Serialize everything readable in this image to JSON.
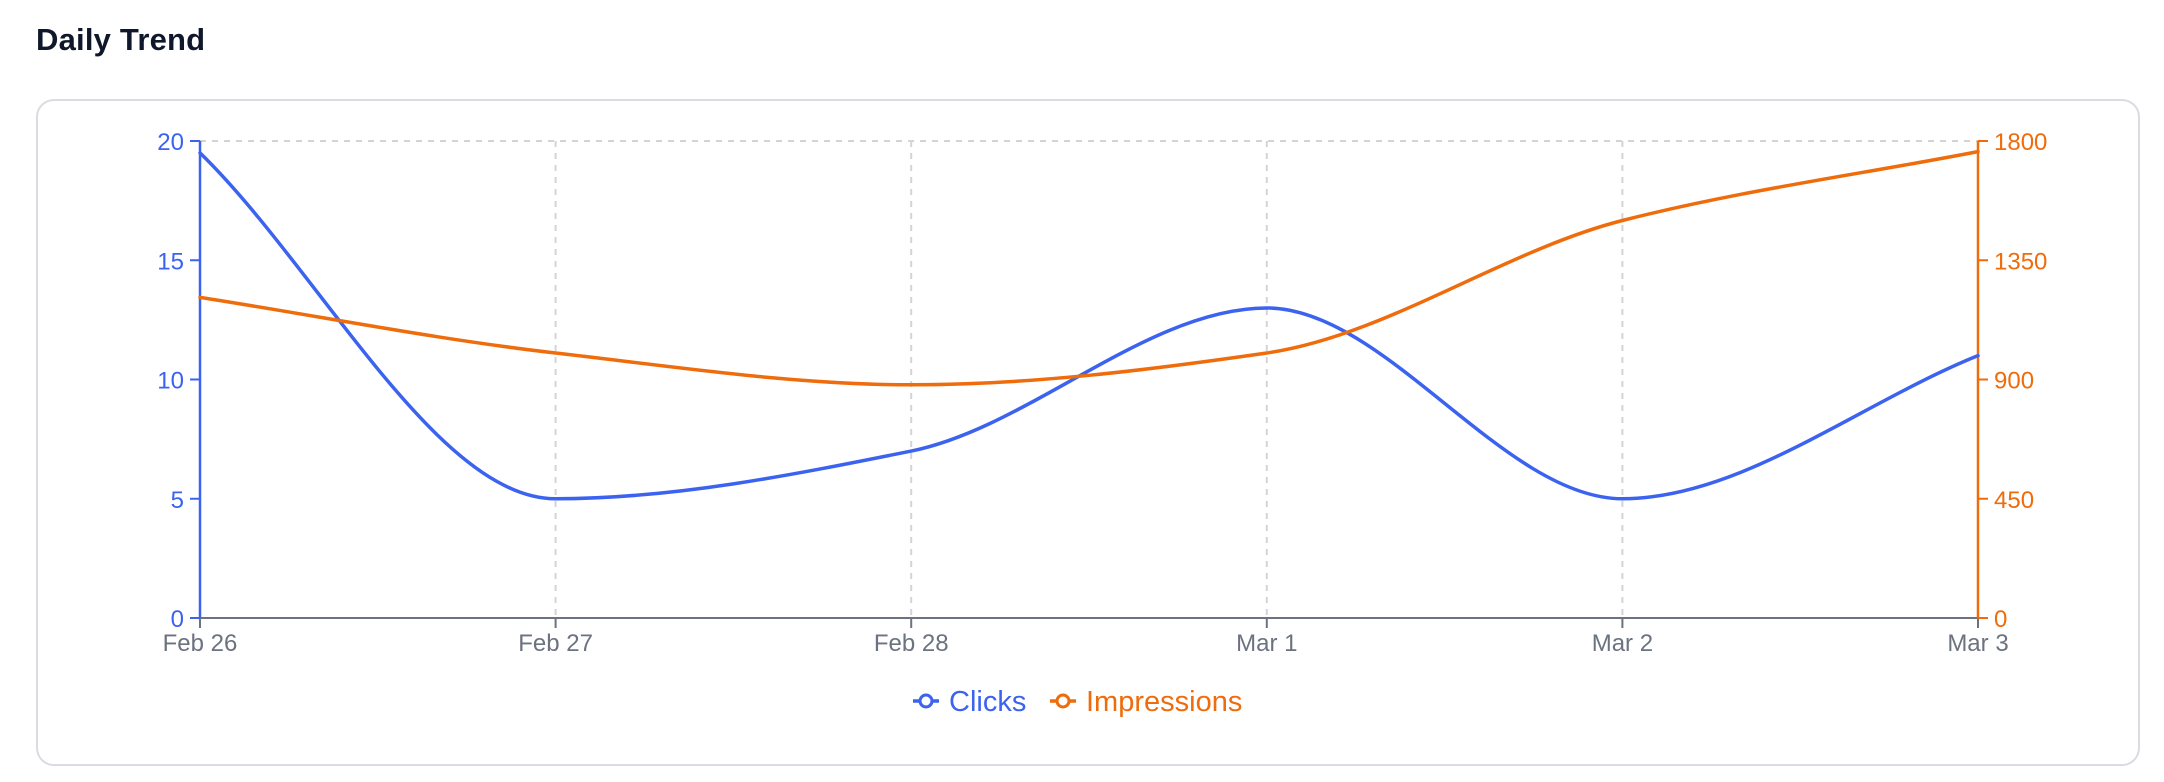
{
  "page": {
    "title": "Daily Trend"
  },
  "colors": {
    "clicks": "#3b63f0",
    "impressions": "#ef6c0c",
    "grid": "#d4d4d8",
    "x_axis": "#6b7280",
    "x_tick_text": "#6b7280"
  },
  "chart_data": {
    "type": "line",
    "title": "",
    "x": [
      "Feb 26",
      "Feb 27",
      "Feb 28",
      "Mar 1",
      "Mar 2",
      "Mar 3"
    ],
    "series": [
      {
        "name": "Clicks",
        "axis": "left",
        "values": [
          19.5,
          5,
          7,
          13,
          5,
          11
        ]
      },
      {
        "name": "Impressions",
        "axis": "right",
        "values": [
          1210,
          1000,
          880,
          1000,
          1500,
          1760
        ]
      }
    ],
    "y_left": {
      "ylim": [
        0,
        20
      ],
      "ticks": [
        "0",
        "5",
        "10",
        "15",
        "20"
      ]
    },
    "y_right": {
      "ylim": [
        0,
        1800
      ],
      "ticks": [
        "0",
        "450",
        "900",
        "1350",
        "1800"
      ]
    },
    "grid": true,
    "curve": "smooth",
    "legend": {
      "position": "bottom-center",
      "items": [
        "Clicks",
        "Impressions"
      ]
    }
  }
}
